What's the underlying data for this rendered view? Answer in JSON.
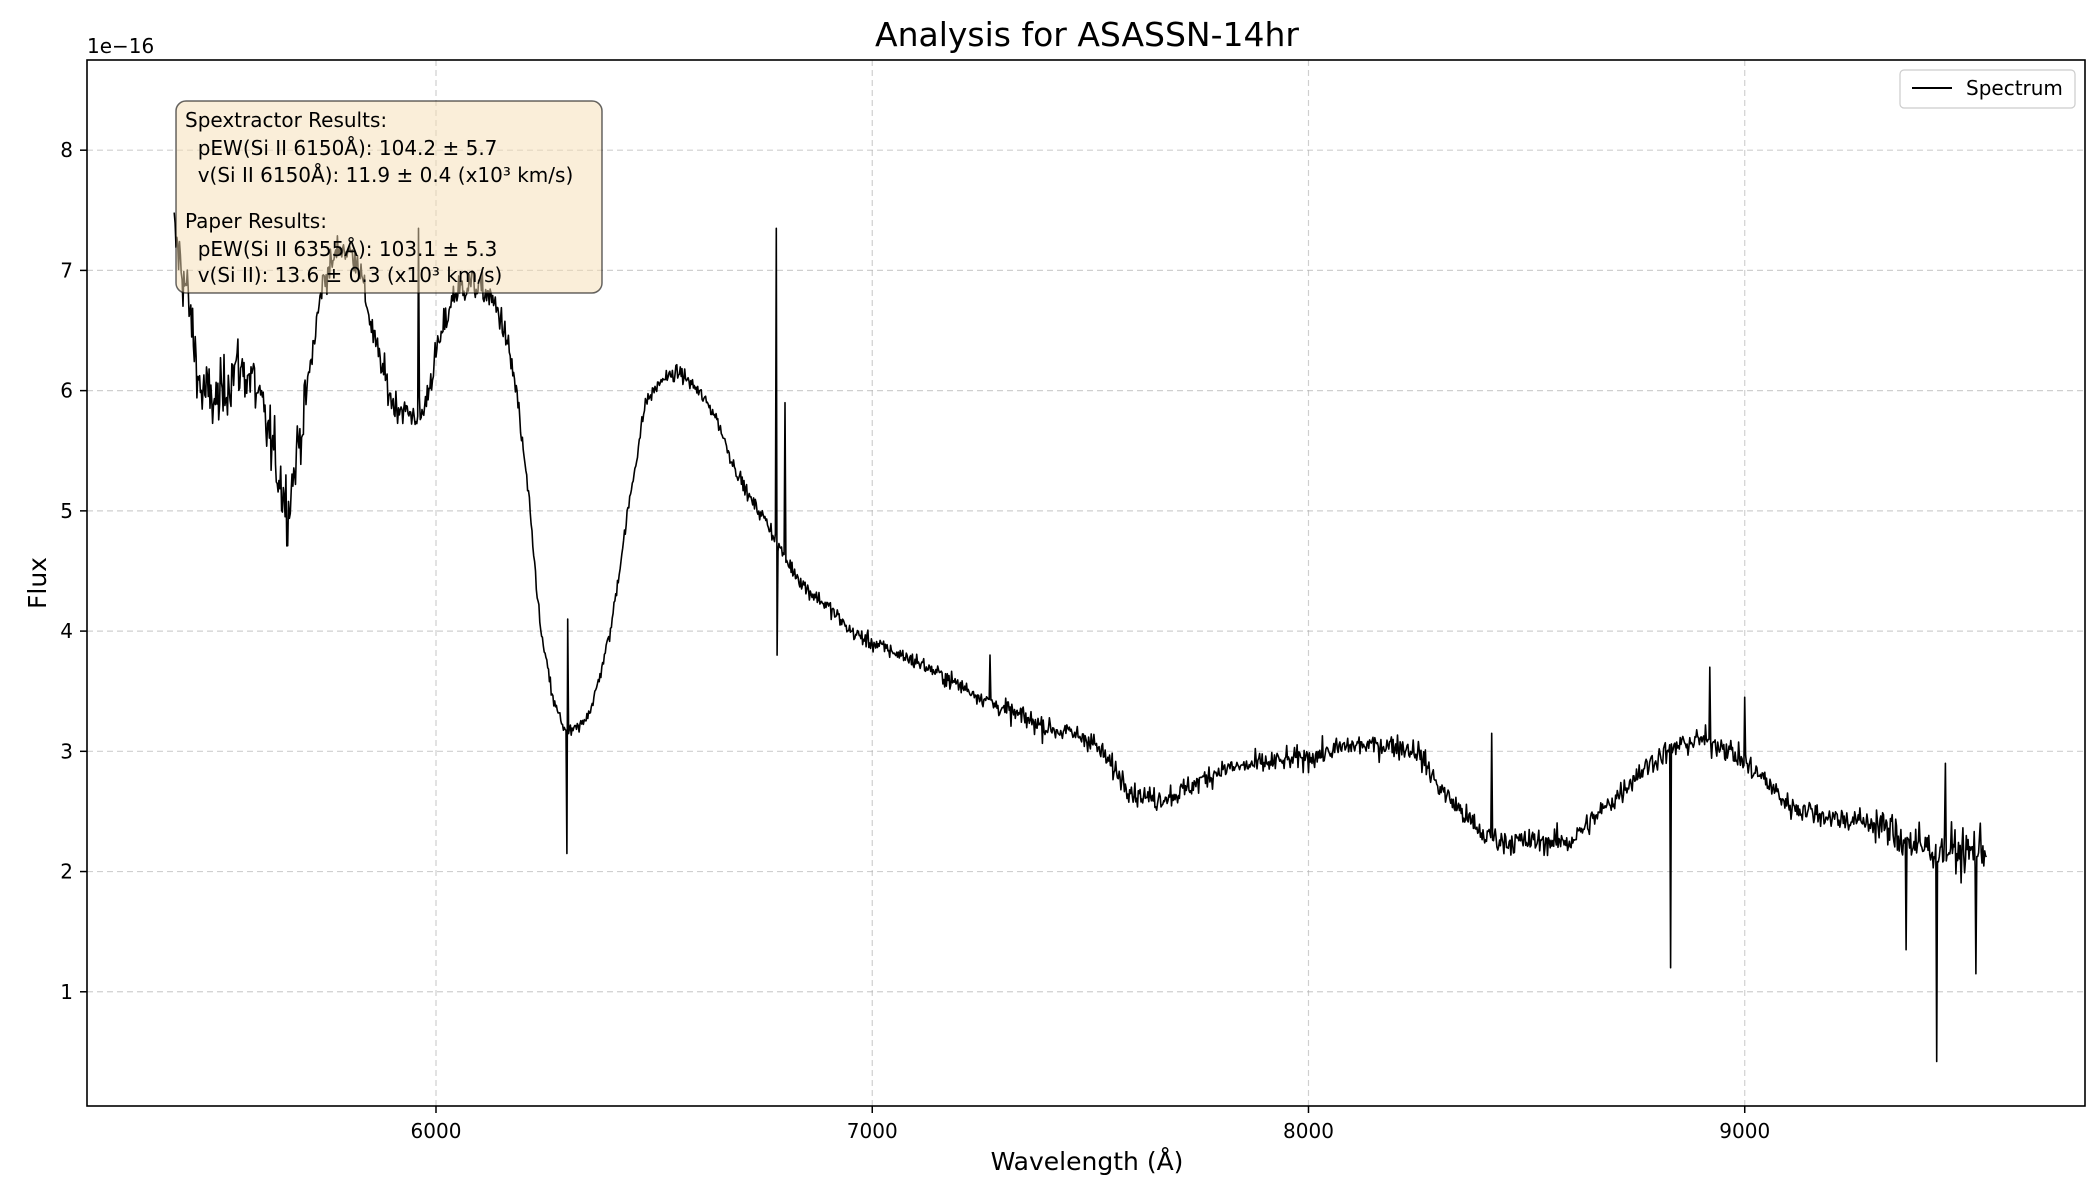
{
  "chart_data": {
    "type": "line",
    "title": "Analysis for ASASSN-14hr",
    "xlabel": "Wavelength (Å)",
    "ylabel": "Flux",
    "y_offset_text": "1e−16",
    "xlim": [
      5200,
      9780
    ],
    "ylim": [
      0.05,
      8.75
    ],
    "xticks": [
      6000,
      7000,
      8000,
      9000
    ],
    "xtick_labels": [
      "6000",
      "7000",
      "8000",
      "9000"
    ],
    "yticks": [
      1,
      2,
      3,
      4,
      5,
      6,
      7,
      8
    ],
    "ytick_labels": [
      "1",
      "2",
      "3",
      "4",
      "5",
      "6",
      "7",
      "8"
    ],
    "grid": true,
    "legend": {
      "placement": "top-right",
      "entries": [
        "Spectrum"
      ]
    },
    "annotation": {
      "lines": [
        "Spextractor Results:",
        "  pEW(Si II 6150Å): 104.2 ± 5.7",
        "  v(Si II 6150Å): 11.9 ± 0.4 (x10³ km/s)",
        "",
        "Paper Results:",
        "  pEW(Si II 6355Å): 103.1 ± 5.3",
        "  v(Si II): 13.6 ± 0.3 (x10³ km/s)"
      ],
      "box_color": "#f5deb3"
    },
    "series": [
      {
        "name": "Spectrum",
        "color": "#000000",
        "x": [
          5400,
          5430,
          5460,
          5500,
          5540,
          5580,
          5620,
          5660,
          5700,
          5740,
          5780,
          5820,
          5860,
          5900,
          5940,
          5970,
          6000,
          6040,
          6080,
          6120,
          6150,
          6180,
          6210,
          6240,
          6270,
          6300,
          6330,
          6360,
          6400,
          6440,
          6480,
          6520,
          6560,
          6600,
          6640,
          6680,
          6720,
          6760,
          6800,
          6850,
          6900,
          6950,
          7000,
          7100,
          7200,
          7300,
          7400,
          7500,
          7600,
          7650,
          7700,
          7750,
          7800,
          7900,
          8000,
          8100,
          8200,
          8250,
          8300,
          8350,
          8400,
          8450,
          8500,
          8600,
          8700,
          8750,
          8800,
          8850,
          8900,
          8950,
          9000,
          9050,
          9100,
          9200,
          9300,
          9350,
          9400,
          9450,
          9500,
          9555
        ],
        "y": [
          7.3,
          6.8,
          6.0,
          5.9,
          6.2,
          6.1,
          5.6,
          5.0,
          5.9,
          6.9,
          7.2,
          7.1,
          6.4,
          5.9,
          5.8,
          5.8,
          6.3,
          6.8,
          6.9,
          6.8,
          6.6,
          6.1,
          5.2,
          4.0,
          3.4,
          3.15,
          3.2,
          3.4,
          4.0,
          5.0,
          5.9,
          6.1,
          6.15,
          6.0,
          5.8,
          5.4,
          5.1,
          4.9,
          4.6,
          4.35,
          4.2,
          4.0,
          3.9,
          3.75,
          3.55,
          3.35,
          3.2,
          3.1,
          2.65,
          2.6,
          2.65,
          2.75,
          2.85,
          2.9,
          2.95,
          3.05,
          3.05,
          3.0,
          2.7,
          2.5,
          2.3,
          2.25,
          2.25,
          2.25,
          2.6,
          2.8,
          2.95,
          3.05,
          3.1,
          3.05,
          2.9,
          2.75,
          2.55,
          2.45,
          2.4,
          2.3,
          2.2,
          2.2,
          2.15,
          2.2
        ]
      }
    ]
  }
}
